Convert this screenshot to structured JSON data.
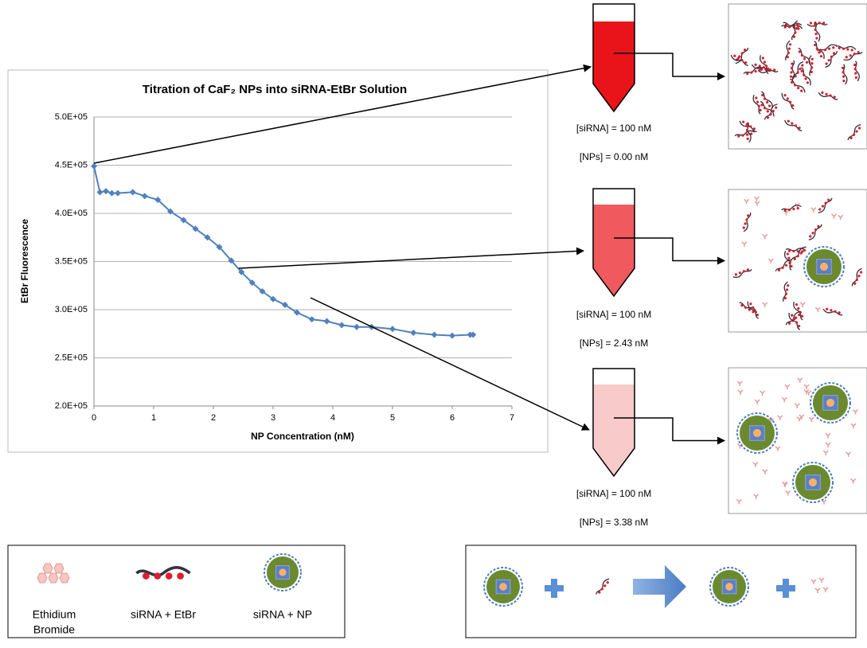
{
  "chart_data": {
    "type": "line",
    "title": "Titration of CaF₂ NPs into siRNA-EtBr Solution",
    "x_label": "NP Concentration (nM)",
    "y_label": "EtBr Fluorescence",
    "x": [
      0,
      0.1,
      0.2,
      0.3,
      0.4,
      0.65,
      0.85,
      1.07,
      1.28,
      1.5,
      1.7,
      1.9,
      2.1,
      2.3,
      2.47,
      2.65,
      2.82,
      3.0,
      3.2,
      3.4,
      3.65,
      3.9,
      4.15,
      4.4,
      4.65,
      5.0,
      5.35,
      5.7,
      6.0,
      6.3,
      6.35
    ],
    "values": [
      449000,
      422000,
      423000,
      421000,
      421000,
      422000,
      418000,
      414000,
      402000,
      393000,
      384000,
      375000,
      365000,
      351000,
      339000,
      328000,
      319000,
      311000,
      305000,
      297000,
      290000,
      288000,
      284000,
      282000,
      282000,
      280000,
      276000,
      274000,
      273000,
      274000,
      274000
    ],
    "color": "#4f81bd",
    "xlim": [
      0,
      7
    ],
    "xticks": [
      0,
      1,
      2,
      3,
      4,
      5,
      6,
      7
    ],
    "ylim": [
      200000,
      500000
    ],
    "yticks": [
      {
        "value": 200000,
        "label": "2.0E+05"
      },
      {
        "value": 250000,
        "label": "2.5E+05"
      },
      {
        "value": 300000,
        "label": "3.0E+05"
      },
      {
        "value": 350000,
        "label": "3.5E+05"
      },
      {
        "value": 400000,
        "label": "4.0E+05"
      },
      {
        "value": 450000,
        "label": "4.5E+05"
      },
      {
        "value": 500000,
        "label": "5.0E+05"
      }
    ],
    "grid": true
  },
  "tubes": [
    {
      "sirna": "[siRNA] = 100 nM",
      "nps": "[NPs] = 0.00 nM"
    },
    {
      "sirna": "[siRNA] = 100 nM",
      "nps": "[NPs] = 2.43 nM"
    },
    {
      "sirna": "[siRNA] = 100 nM",
      "nps": "[NPs] = 3.38 nM"
    }
  ],
  "legend": {
    "ethidium": [
      "Ethidium",
      "Bromide"
    ],
    "sirna_etbr": "siRNA + EtBr",
    "sirna_np": "siRNA + NP"
  }
}
